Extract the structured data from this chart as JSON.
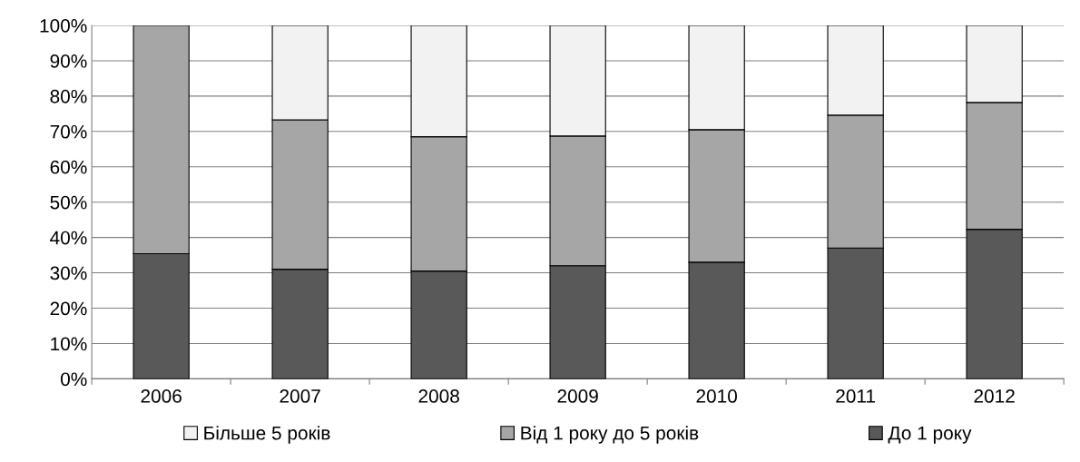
{
  "chart_data": {
    "type": "bar",
    "stacked": true,
    "categories": [
      "2006",
      "2007",
      "2008",
      "2009",
      "2010",
      "2011",
      "2012"
    ],
    "series": [
      {
        "name": "До 1 року",
        "color": "#595959",
        "values": [
          35.4,
          31,
          30.5,
          32,
          33,
          37,
          42.3
        ]
      },
      {
        "name": "Від 1 року до 5 років",
        "color": "#a6a6a6",
        "values": [
          64.6,
          42.3,
          38,
          36.7,
          37.5,
          37.6,
          35.9
        ]
      },
      {
        "name": "Більше 5 років",
        "color": "#f2f2f2",
        "values": [
          null,
          26.7,
          31.5,
          31.3,
          29.5,
          25.4,
          21.8
        ]
      }
    ],
    "ylim": [
      0,
      100
    ],
    "yticks": [
      {
        "value": 0,
        "label": "0%"
      },
      {
        "value": 10,
        "label": "10%"
      },
      {
        "value": 20,
        "label": "20%"
      },
      {
        "value": 30,
        "label": "30%"
      },
      {
        "value": 40,
        "label": "40%"
      },
      {
        "value": 50,
        "label": "50%"
      },
      {
        "value": 60,
        "label": "60%"
      },
      {
        "value": 70,
        "label": "70%"
      },
      {
        "value": 80,
        "label": "80%"
      },
      {
        "value": 90,
        "label": "90%"
      },
      {
        "value": 100,
        "label": "100%"
      }
    ],
    "grid": "y",
    "legend": "bottom"
  }
}
